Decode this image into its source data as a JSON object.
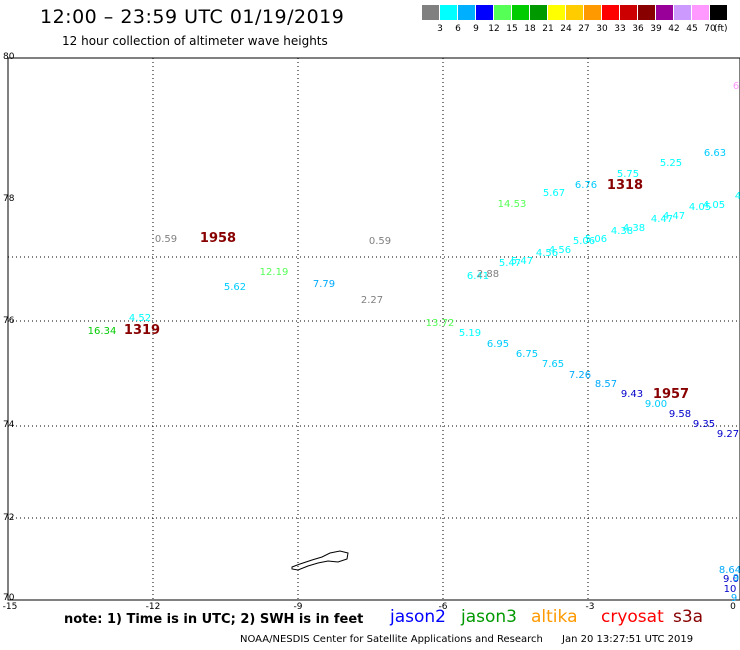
{
  "header": {
    "title": "12:00 – 23:59 UTC 01/19/2019",
    "subtitle": "12 hour collection of altimeter wave heights"
  },
  "legend": {
    "colors": [
      "#808080",
      "#00ffff",
      "#00b0ff",
      "#0000ff",
      "#55ff55",
      "#00cc00",
      "#009900",
      "#ffff00",
      "#ffcc00",
      "#ff9900",
      "#ff0000",
      "#cc0000",
      "#880000",
      "#990099",
      "#cc99ff",
      "#ff99ff",
      "#000000"
    ],
    "labels": [
      "3",
      "6",
      "9",
      "12",
      "15",
      "18",
      "21",
      "24",
      "27",
      "30",
      "33",
      "36",
      "39",
      "42",
      "45",
      "70"
    ],
    "unit": "(ft)"
  },
  "axes": {
    "x_ticks": [
      "-15",
      "-12",
      "-9",
      "-6",
      "-3",
      "0"
    ],
    "y_ticks": [
      "80",
      "78",
      "76",
      "74",
      "72",
      "70"
    ]
  },
  "observations": [
    {
      "text": "0.59",
      "color": "#808080"
    },
    {
      "text": "1958",
      "color": "#880000"
    },
    {
      "text": "0.59",
      "color": "#808080"
    },
    {
      "text": "12.19",
      "color": "#55ff55"
    },
    {
      "text": "5.62",
      "color": "#00ccff"
    },
    {
      "text": "7.79",
      "color": "#00aaff"
    },
    {
      "text": "2.27",
      "color": "#808080"
    },
    {
      "text": "4.52",
      "color": "#00ffff"
    },
    {
      "text": "16.34",
      "color": "#00cc00"
    },
    {
      "text": "1319",
      "color": "#880000"
    },
    {
      "text": "13.72",
      "color": "#55ff55"
    },
    {
      "text": "5.19",
      "color": "#00ffff"
    },
    {
      "text": "6.95",
      "color": "#00ccff"
    },
    {
      "text": "6.75",
      "color": "#00ccff"
    },
    {
      "text": "7.65",
      "color": "#00ccff"
    },
    {
      "text": "7.26",
      "color": "#00aaff"
    },
    {
      "text": "8.57",
      "color": "#00aaff"
    },
    {
      "text": "9.43",
      "color": "#0000cc"
    },
    {
      "text": "1957",
      "color": "#880000"
    },
    {
      "text": "9.00",
      "color": "#00ccff"
    },
    {
      "text": "9.58",
      "color": "#0000cc"
    },
    {
      "text": "9.35",
      "color": "#0000cc"
    },
    {
      "text": "9.27",
      "color": "#0000cc"
    },
    {
      "text": "6.41",
      "color": "#00ffff"
    },
    {
      "text": "2.88",
      "color": "#808080"
    },
    {
      "text": "5.47",
      "color": "#00ffff"
    },
    {
      "text": "5.47",
      "color": "#00ffff"
    },
    {
      "text": "4.56",
      "color": "#00ffff"
    },
    {
      "text": "4.56",
      "color": "#00ffff"
    },
    {
      "text": "5.06",
      "color": "#00ffff"
    },
    {
      "text": "5.06",
      "color": "#00ffff"
    },
    {
      "text": "4.38",
      "color": "#00ffff"
    },
    {
      "text": "4.38",
      "color": "#00ffff"
    },
    {
      "text": "4.47",
      "color": "#00ffff"
    },
    {
      "text": "4.47",
      "color": "#00ffff"
    },
    {
      "text": "4.05",
      "color": "#00ffff"
    },
    {
      "text": "4.05",
      "color": "#00ffff"
    },
    {
      "text": "14.53",
      "color": "#55ff55"
    },
    {
      "text": "5.67",
      "color": "#00ffff"
    },
    {
      "text": "6.76",
      "color": "#00ccff"
    },
    {
      "text": "5.75",
      "color": "#00ffff"
    },
    {
      "text": "1318",
      "color": "#880000"
    },
    {
      "text": "5.25",
      "color": "#00ffff"
    },
    {
      "text": "6.63",
      "color": "#00ccff"
    },
    {
      "text": "6",
      "color": "#ff99ff"
    },
    {
      "text": "4",
      "color": "#00ffff"
    },
    {
      "text": "8.64",
      "color": "#00aaff"
    },
    {
      "text": "9.0",
      "color": "#0000cc"
    },
    {
      "text": "10",
      "color": "#0000cc"
    },
    {
      "text": "9",
      "color": "#00aaff"
    },
    {
      "text": "9",
      "color": "#00aaff"
    }
  ],
  "footer": {
    "note": "note: 1) Time is in UTC; 2) SWH is in feet",
    "satellites": [
      {
        "name": "jason2",
        "color": "#0000ff"
      },
      {
        "name": "jason3",
        "color": "#009900"
      },
      {
        "name": "altika",
        "color": "#ff9900"
      },
      {
        "name": "cryosat",
        "color": "#ff0000"
      },
      {
        "name": "s3a",
        "color": "#880000"
      }
    ],
    "credit": "NOAA/NESDIS Center for Satellite Applications and Research",
    "timestamp": "Jan 20 13:27:51 UTC 2019"
  }
}
